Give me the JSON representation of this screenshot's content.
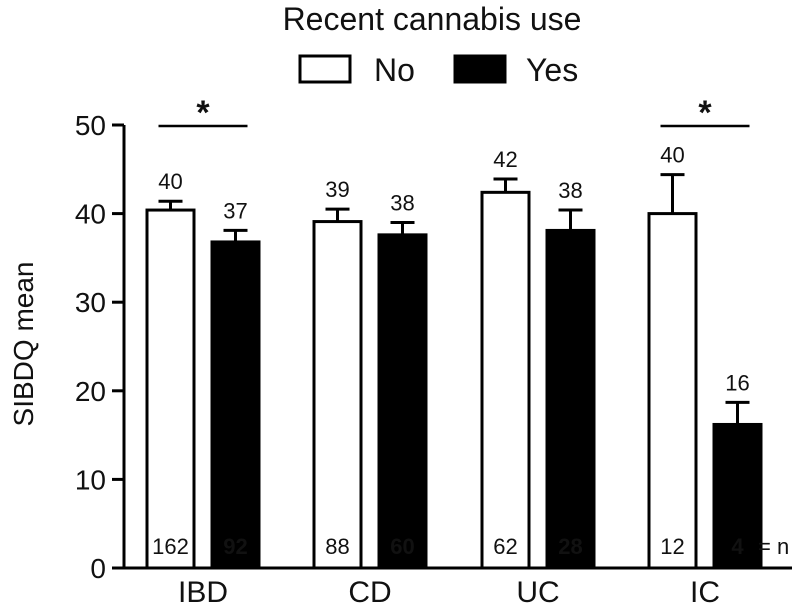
{
  "chart_data": {
    "type": "bar",
    "legend": {
      "title": "Recent cannabis use",
      "position": "top-center"
    },
    "categories": [
      "IBD",
      "CD",
      "UC",
      "IC"
    ],
    "series": [
      {
        "name": "No",
        "fill": "#ffffff",
        "stroke": "#000000",
        "values": [
          40.4,
          39.1,
          42.4,
          40.0
        ],
        "errors": [
          1.0,
          1.4,
          1.5,
          4.4
        ],
        "value_labels": [
          "40",
          "39",
          "42",
          "40"
        ],
        "n_labels": [
          "162",
          "88",
          "62",
          "12"
        ]
      },
      {
        "name": "Yes",
        "fill": "#000000",
        "stroke": "#000000",
        "values": [
          36.8,
          37.6,
          38.1,
          16.2
        ],
        "errors": [
          1.3,
          1.4,
          2.3,
          2.5
        ],
        "value_labels": [
          "37",
          "38",
          "38",
          "16"
        ],
        "n_labels": [
          "92",
          "60",
          "28",
          "4"
        ]
      }
    ],
    "ylabel": "SIBDQ mean",
    "ylim": [
      0,
      50
    ],
    "yticks": [
      0,
      10,
      20,
      30,
      40,
      50
    ],
    "n_suffix": "= n",
    "significance": [
      {
        "category": "IBD",
        "label": "*"
      },
      {
        "category": "IC",
        "label": "*"
      }
    ],
    "grid": false
  }
}
